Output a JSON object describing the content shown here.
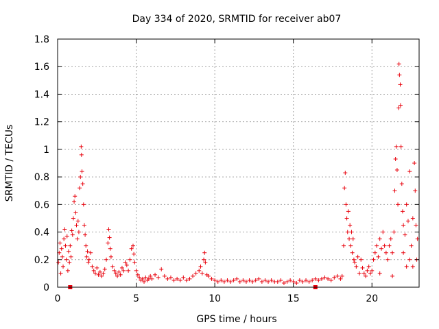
{
  "chart_data": {
    "type": "scatter",
    "title": "Day 334 of 2020, SRMTID for receiver ab07",
    "xlabel": "GPS time / hours",
    "ylabel": "SRMTID / TECUs",
    "xlim": [
      0,
      23
    ],
    "ylim": [
      0,
      1.8
    ],
    "xticks": [
      0,
      5,
      10,
      15,
      20
    ],
    "yticks": [
      0,
      0.2,
      0.4,
      0.6,
      0.8,
      1,
      1.2,
      1.4,
      1.6,
      1.8
    ],
    "xtick_labels": [
      "0",
      "5",
      "10",
      "15",
      "20"
    ],
    "ytick_labels": [
      "0",
      "0.2",
      "0.4",
      "0.6",
      "0.8",
      "1",
      "1.2",
      "1.4",
      "1.6",
      "1.8"
    ],
    "grid": true,
    "marker": "+",
    "color": "#e8000b",
    "series": [
      {
        "name": "SRMTID",
        "points": [
          [
            0.05,
            0.18
          ],
          [
            0.1,
            0.25
          ],
          [
            0.15,
            0.32
          ],
          [
            0.2,
            0.1
          ],
          [
            0.25,
            0.28
          ],
          [
            0.3,
            0.22
          ],
          [
            0.35,
            0.15
          ],
          [
            0.4,
            0.35
          ],
          [
            0.45,
            0.42
          ],
          [
            0.5,
            0.3
          ],
          [
            0.55,
            0.2
          ],
          [
            0.6,
            0.37
          ],
          [
            0.65,
            0.12
          ],
          [
            0.7,
            0.26
          ],
          [
            0.75,
            0.18
          ],
          [
            0.8,
            0.3
          ],
          [
            0.85,
            0.22
          ],
          [
            0.9,
            0.41
          ],
          [
            0.95,
            0.38
          ],
          [
            1.0,
            0.5
          ],
          [
            1.05,
            0.62
          ],
          [
            1.1,
            0.66
          ],
          [
            1.15,
            0.54
          ],
          [
            1.2,
            0.45
          ],
          [
            1.25,
            0.35
          ],
          [
            1.3,
            0.48
          ],
          [
            1.35,
            0.4
          ],
          [
            1.4,
            0.72
          ],
          [
            1.45,
            0.8
          ],
          [
            1.5,
            1.02
          ],
          [
            1.52,
            0.96
          ],
          [
            1.55,
            0.84
          ],
          [
            1.6,
            0.75
          ],
          [
            1.65,
            0.6
          ],
          [
            1.7,
            0.45
          ],
          [
            1.75,
            0.38
          ],
          [
            1.8,
            0.3
          ],
          [
            1.85,
            0.22
          ],
          [
            1.9,
            0.26
          ],
          [
            1.95,
            0.18
          ],
          [
            2.0,
            0.2
          ],
          [
            2.1,
            0.25
          ],
          [
            2.2,
            0.15
          ],
          [
            2.3,
            0.12
          ],
          [
            2.4,
            0.1
          ],
          [
            2.5,
            0.14
          ],
          [
            2.6,
            0.09
          ],
          [
            2.7,
            0.11
          ],
          [
            2.8,
            0.08
          ],
          [
            2.9,
            0.1
          ],
          [
            3.0,
            0.13
          ],
          [
            3.1,
            0.2
          ],
          [
            3.2,
            0.32
          ],
          [
            3.25,
            0.42
          ],
          [
            3.3,
            0.36
          ],
          [
            3.35,
            0.28
          ],
          [
            3.4,
            0.22
          ],
          [
            3.5,
            0.15
          ],
          [
            3.6,
            0.12
          ],
          [
            3.7,
            0.1
          ],
          [
            3.8,
            0.08
          ],
          [
            3.9,
            0.11
          ],
          [
            4.0,
            0.09
          ],
          [
            4.1,
            0.14
          ],
          [
            4.2,
            0.12
          ],
          [
            4.3,
            0.18
          ],
          [
            4.4,
            0.16
          ],
          [
            4.5,
            0.12
          ],
          [
            4.6,
            0.2
          ],
          [
            4.7,
            0.28
          ],
          [
            4.8,
            0.3
          ],
          [
            4.85,
            0.24
          ],
          [
            4.9,
            0.18
          ],
          [
            5.0,
            0.12
          ],
          [
            5.1,
            0.09
          ],
          [
            5.2,
            0.07
          ],
          [
            5.3,
            0.05
          ],
          [
            5.4,
            0.06
          ],
          [
            5.5,
            0.04
          ],
          [
            5.6,
            0.07
          ],
          [
            5.7,
            0.05
          ],
          [
            5.8,
            0.06
          ],
          [
            5.9,
            0.08
          ],
          [
            6.0,
            0.06
          ],
          [
            6.2,
            0.09
          ],
          [
            6.4,
            0.07
          ],
          [
            6.6,
            0.13
          ],
          [
            6.8,
            0.08
          ],
          [
            7.0,
            0.06
          ],
          [
            7.2,
            0.07
          ],
          [
            7.4,
            0.05
          ],
          [
            7.6,
            0.06
          ],
          [
            7.8,
            0.05
          ],
          [
            8.0,
            0.07
          ],
          [
            8.2,
            0.05
          ],
          [
            8.4,
            0.06
          ],
          [
            8.6,
            0.08
          ],
          [
            8.8,
            0.1
          ],
          [
            9.0,
            0.12
          ],
          [
            9.1,
            0.15
          ],
          [
            9.2,
            0.1
          ],
          [
            9.3,
            0.2
          ],
          [
            9.35,
            0.25
          ],
          [
            9.4,
            0.18
          ],
          [
            9.5,
            0.09
          ],
          [
            9.6,
            0.08
          ],
          [
            9.8,
            0.06
          ],
          [
            10.0,
            0.05
          ],
          [
            10.2,
            0.04
          ],
          [
            10.4,
            0.05
          ],
          [
            10.6,
            0.04
          ],
          [
            10.8,
            0.05
          ],
          [
            11.0,
            0.04
          ],
          [
            11.2,
            0.05
          ],
          [
            11.4,
            0.06
          ],
          [
            11.6,
            0.04
          ],
          [
            11.8,
            0.05
          ],
          [
            12.0,
            0.04
          ],
          [
            12.2,
            0.05
          ],
          [
            12.4,
            0.04
          ],
          [
            12.6,
            0.05
          ],
          [
            12.8,
            0.06
          ],
          [
            13.0,
            0.04
          ],
          [
            13.2,
            0.05
          ],
          [
            13.4,
            0.04
          ],
          [
            13.6,
            0.05
          ],
          [
            13.8,
            0.04
          ],
          [
            14.0,
            0.04
          ],
          [
            14.2,
            0.05
          ],
          [
            14.4,
            0.03
          ],
          [
            14.6,
            0.04
          ],
          [
            14.8,
            0.05
          ],
          [
            15.0,
            0.04
          ],
          [
            15.2,
            0.03
          ],
          [
            15.4,
            0.05
          ],
          [
            15.6,
            0.04
          ],
          [
            15.8,
            0.05
          ],
          [
            16.0,
            0.04
          ],
          [
            16.2,
            0.05
          ],
          [
            16.4,
            0.06
          ],
          [
            16.6,
            0.05
          ],
          [
            16.8,
            0.06
          ],
          [
            17.0,
            0.07
          ],
          [
            17.2,
            0.06
          ],
          [
            17.4,
            0.05
          ],
          [
            17.6,
            0.07
          ],
          [
            17.8,
            0.08
          ],
          [
            18.0,
            0.06
          ],
          [
            18.1,
            0.08
          ],
          [
            18.2,
            0.3
          ],
          [
            18.25,
            0.72
          ],
          [
            18.3,
            0.83
          ],
          [
            18.35,
            0.6
          ],
          [
            18.4,
            0.5
          ],
          [
            18.45,
            0.4
          ],
          [
            18.5,
            0.55
          ],
          [
            18.55,
            0.35
          ],
          [
            18.6,
            0.45
          ],
          [
            18.65,
            0.3
          ],
          [
            18.7,
            0.4
          ],
          [
            18.75,
            0.25
          ],
          [
            18.8,
            0.35
          ],
          [
            18.85,
            0.2
          ],
          [
            18.9,
            0.18
          ],
          [
            19.0,
            0.15
          ],
          [
            19.1,
            0.22
          ],
          [
            19.2,
            0.1
          ],
          [
            19.3,
            0.2
          ],
          [
            19.4,
            0.14
          ],
          [
            19.5,
            0.1
          ],
          [
            19.6,
            0.08
          ],
          [
            19.7,
            0.12
          ],
          [
            19.8,
            0.15
          ],
          [
            19.9,
            0.1
          ],
          [
            20.0,
            0.12
          ],
          [
            20.1,
            0.2
          ],
          [
            20.2,
            0.25
          ],
          [
            20.3,
            0.3
          ],
          [
            20.4,
            0.22
          ],
          [
            20.5,
            0.35
          ],
          [
            20.6,
            0.28
          ],
          [
            20.7,
            0.4
          ],
          [
            20.8,
            0.3
          ],
          [
            20.9,
            0.25
          ],
          [
            21.0,
            0.2
          ],
          [
            21.1,
            0.3
          ],
          [
            21.2,
            0.35
          ],
          [
            21.3,
            0.25
          ],
          [
            21.4,
            0.4
          ],
          [
            21.45,
            0.7
          ],
          [
            21.5,
            0.93
          ],
          [
            21.55,
            1.02
          ],
          [
            21.6,
            0.85
          ],
          [
            21.65,
            0.6
          ],
          [
            21.7,
            1.3
          ],
          [
            21.72,
            1.62
          ],
          [
            21.75,
            1.54
          ],
          [
            21.8,
            1.47
          ],
          [
            21.82,
            1.32
          ],
          [
            21.85,
            1.02
          ],
          [
            21.9,
            0.75
          ],
          [
            21.95,
            0.55
          ],
          [
            22.0,
            0.45
          ],
          [
            22.1,
            0.38
          ],
          [
            22.2,
            0.6
          ],
          [
            22.3,
            0.48
          ],
          [
            22.4,
            0.84
          ],
          [
            22.5,
            0.3
          ],
          [
            22.6,
            0.5
          ],
          [
            22.7,
            0.9
          ],
          [
            22.75,
            0.7
          ],
          [
            22.8,
            0.45
          ],
          [
            22.85,
            0.2
          ],
          [
            22.9,
            0.35
          ],
          [
            22.0,
            0.25
          ],
          [
            22.2,
            0.15
          ],
          [
            22.4,
            0.2
          ],
          [
            22.6,
            0.15
          ],
          [
            20.5,
            0.1
          ],
          [
            21.3,
            0.08
          ]
        ]
      }
    ],
    "axis_markers": [
      {
        "x": 0.8,
        "y": 0,
        "marker": "square"
      },
      {
        "x": 16.4,
        "y": 0,
        "marker": "square"
      }
    ]
  }
}
